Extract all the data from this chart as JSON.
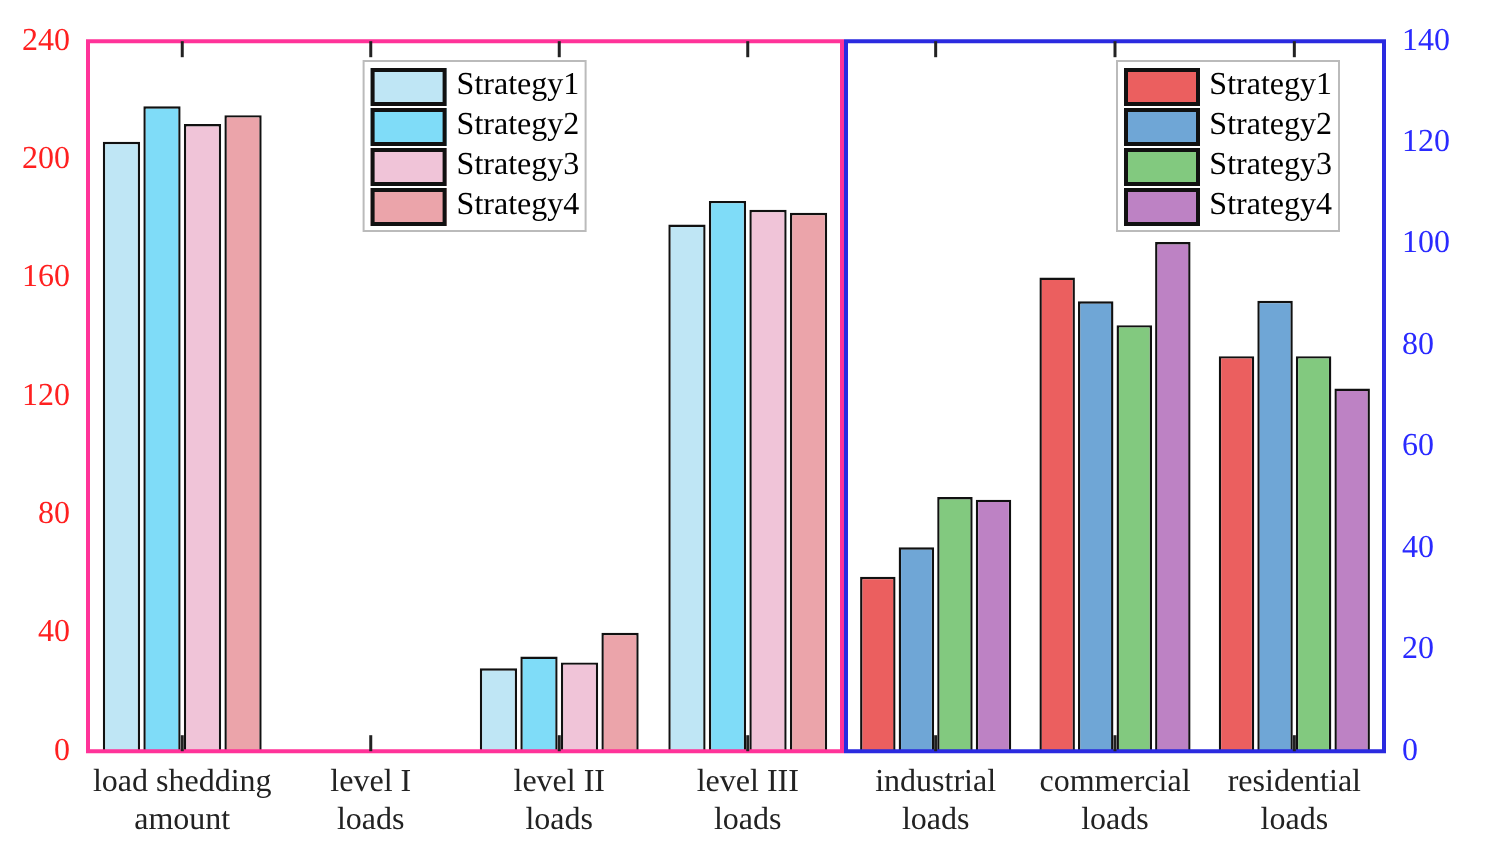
{
  "chart_data": [
    {
      "type": "bar",
      "categories": [
        "load shedding amount",
        "level I loads",
        "level II loads",
        "level III loads"
      ],
      "series": [
        {
          "name": "Strategy1",
          "color": "#bfe6f5",
          "values": [
            206,
            0,
            28,
            178
          ]
        },
        {
          "name": "Strategy2",
          "color": "#7fdcf8",
          "values": [
            218,
            0,
            32,
            186
          ]
        },
        {
          "name": "Strategy3",
          "color": "#f0c4d8",
          "values": [
            212,
            0,
            30,
            183
          ]
        },
        {
          "name": "Strategy4",
          "color": "#eba4aa",
          "values": [
            215,
            0,
            40,
            182
          ]
        }
      ],
      "ylim": [
        0,
        240
      ],
      "yticks": [
        0,
        40,
        80,
        120,
        160,
        200,
        240
      ],
      "grid": false,
      "legend": "top"
    },
    {
      "type": "bar",
      "categories": [
        "industrial loads",
        "commercial loads",
        "residential loads"
      ],
      "series": [
        {
          "name": "Strategy1",
          "color": "#eb5f5f",
          "values": [
            34.4,
            93.4,
            77.9
          ]
        },
        {
          "name": "Strategy2",
          "color": "#6fa6d6",
          "values": [
            40.2,
            88.7,
            88.8
          ]
        },
        {
          "name": "Strategy3",
          "color": "#82c97f",
          "values": [
            50.1,
            84,
            77.9
          ]
        },
        {
          "name": "Strategy4",
          "color": "#bd82c4",
          "values": [
            49.6,
            100.4,
            71.5
          ]
        }
      ],
      "ylim": [
        0,
        140
      ],
      "yticks": [
        0,
        20,
        40,
        60,
        80,
        100,
        120,
        140
      ],
      "grid": false,
      "legend": "top right"
    }
  ]
}
